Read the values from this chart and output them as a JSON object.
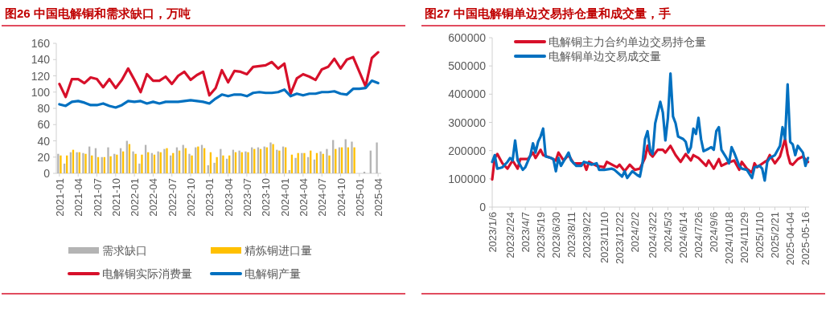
{
  "chart_data": [
    {
      "type": "bar",
      "title": "图26  中国电解铜和需求缺口，万吨",
      "categories": [
        "2021-01",
        null,
        null,
        "2021-04",
        null,
        null,
        "2021-07",
        null,
        null,
        "2021-10",
        null,
        null,
        "2022-01",
        null,
        null,
        "2022-04",
        null,
        null,
        "2022-07",
        null,
        null,
        "2022-10",
        null,
        null,
        "2023-01",
        null,
        null,
        "2023-04",
        null,
        null,
        "2023-07",
        null,
        null,
        "2023-10",
        null,
        null,
        "2024-01",
        null,
        null,
        "2024-04",
        null,
        null,
        "2024-07",
        null,
        null,
        "2024-10",
        null,
        null,
        "2025-01",
        null,
        null,
        "2025-04"
      ],
      "ylim": [
        0,
        160
      ],
      "yticks": [
        0,
        20,
        40,
        60,
        80,
        100,
        120,
        140,
        160
      ],
      "grid": false,
      "legend": "bottom",
      "series": [
        {
          "name": "需求缺口",
          "type": "bar",
          "color": "#b4b4b4",
          "values": [
            24,
            12,
            26,
            26,
            25,
            33,
            31,
            20,
            32,
            24,
            31,
            40,
            27,
            12,
            35,
            25,
            27,
            30,
            22,
            32,
            35,
            24,
            32,
            35,
            10,
            13,
            30,
            18,
            29,
            28,
            27,
            32,
            32,
            33,
            38,
            29,
            33,
            4,
            19,
            25,
            20,
            17,
            27,
            30,
            41,
            32,
            42,
            39,
            null,
            2,
            28,
            38
          ]
        },
        {
          "name": "精炼铜进口量",
          "type": "bar",
          "color": "#ffc000",
          "values": [
            22,
            22,
            29,
            26,
            24,
            22,
            20,
            20,
            21,
            23,
            27,
            36,
            24,
            23,
            26,
            23,
            26,
            31,
            25,
            28,
            31,
            22,
            33,
            31,
            26,
            20,
            22,
            22,
            26,
            26,
            26,
            30,
            30,
            32,
            36,
            28,
            32,
            23,
            25,
            25,
            28,
            25,
            24,
            22,
            30,
            32,
            32,
            32,
            null,
            null,
            null,
            null
          ]
        },
        {
          "name": "电解铜实际消费量",
          "type": "line",
          "color": "#d7102a",
          "values": [
            110,
            94,
            116,
            116,
            111,
            118,
            116,
            106,
            116,
            105,
            115,
            129,
            115,
            100,
            122,
            114,
            114,
            119,
            110,
            120,
            125,
            115,
            121,
            125,
            96,
            105,
            127,
            112,
            126,
            125,
            122,
            131,
            132,
            133,
            137,
            129,
            135,
            98,
            117,
            122,
            119,
            115,
            128,
            131,
            141,
            129,
            140,
            143,
            125,
            107,
            142,
            149
          ]
        },
        {
          "name": "电解铜产量",
          "type": "line",
          "color": "#0070c0",
          "values": [
            85,
            83,
            88,
            89,
            87,
            84,
            84,
            86,
            83,
            81,
            84,
            89,
            88,
            89,
            86,
            88,
            86,
            88,
            88,
            88,
            89,
            90,
            89,
            88,
            86,
            92,
            97,
            95,
            97,
            97,
            95,
            99,
            100,
            99,
            99,
            100,
            103,
            95,
            98,
            96,
            98,
            98,
            100,
            100,
            101,
            98,
            97,
            104,
            104,
            105,
            114,
            111
          ]
        }
      ]
    },
    {
      "type": "line",
      "title": "图27  中国电解铜单边交易持仓量和成交量，手",
      "ylim": [
        0,
        600000
      ],
      "yticks": [
        0,
        100000,
        200000,
        300000,
        400000,
        500000,
        600000
      ],
      "xlim": [
        "2023-01-06",
        "2025-05-26"
      ],
      "xticks": [
        {
          "value": "2023-01-06",
          "label": "2023/1/6"
        },
        {
          "value": "2023-02-24",
          "label": "2023/2/24"
        },
        {
          "value": "2023-04-07",
          "label": "2023/4/7"
        },
        {
          "value": "2023-05-19",
          "label": "2023/5/19"
        },
        {
          "value": "2023-06-30",
          "label": "2023/6/30"
        },
        {
          "value": "2023-08-11",
          "label": "2023/8/11"
        },
        {
          "value": "2023-09-22",
          "label": "2023/9/22"
        },
        {
          "value": "2023-11-10",
          "label": "2023/11/10"
        },
        {
          "value": "2023-12-22",
          "label": "2023/12/22"
        },
        {
          "value": "2024-02-02",
          "label": "2024/2/2"
        },
        {
          "value": "2024-03-22",
          "label": "2024/3/22"
        },
        {
          "value": "2024-05-03",
          "label": "2024/5/3"
        },
        {
          "value": "2024-06-14",
          "label": "2024/6/14"
        },
        {
          "value": "2024-07-26",
          "label": "2024/7/26"
        },
        {
          "value": "2024-09-06",
          "label": "2024/9/6"
        },
        {
          "value": "2024-10-18",
          "label": "2024/10/18"
        },
        {
          "value": "2024-11-29",
          "label": "2024/11/29"
        },
        {
          "value": "2025-01-10",
          "label": "2025/1/10"
        },
        {
          "value": "2025-02-21",
          "label": "2025/2/21"
        },
        {
          "value": "2025-04-04",
          "label": "2025-04-04"
        },
        {
          "value": "2025-05-16",
          "label": "2025-05-16"
        }
      ],
      "grid": false,
      "legend": "top left",
      "series": [
        {
          "name": "电解铜主力合约单边交易持仓量",
          "color": "#d7102a",
          "x": [
            "2023-01-06",
            "2023-01-13",
            "2023-01-20",
            "2023-02-03",
            "2023-02-17",
            "2023-03-03",
            "2023-03-17",
            "2023-03-24",
            "2023-04-14",
            "2023-04-28",
            "2023-05-05",
            "2023-05-19",
            "2023-05-26",
            "2023-06-16",
            "2023-06-30",
            "2023-07-07",
            "2023-07-21",
            "2023-08-04",
            "2023-08-18",
            "2023-09-01",
            "2023-09-15",
            "2023-09-22",
            "2023-09-29",
            "2023-10-20",
            "2023-11-10",
            "2023-11-17",
            "2023-12-15",
            "2023-12-22",
            "2024-01-05",
            "2024-01-19",
            "2024-02-02",
            "2024-02-16",
            "2024-02-23",
            "2024-03-01",
            "2024-03-08",
            "2024-03-15",
            "2024-03-22",
            "2024-04-05",
            "2024-04-19",
            "2024-04-26",
            "2024-05-10",
            "2024-05-24",
            "2024-06-07",
            "2024-06-21",
            "2024-07-05",
            "2024-07-12",
            "2024-07-26",
            "2024-08-16",
            "2024-08-23",
            "2024-09-06",
            "2024-09-20",
            "2024-09-27",
            "2024-10-11",
            "2024-11-01",
            "2024-11-15",
            "2024-11-22",
            "2024-12-06",
            "2024-12-20",
            "2024-12-27",
            "2025-01-03",
            "2025-01-24",
            "2025-01-31",
            "2025-02-07",
            "2025-02-21",
            "2025-03-07",
            "2025-03-21",
            "2025-03-28",
            "2025-04-04",
            "2025-04-11",
            "2025-04-25",
            "2025-05-09",
            "2025-05-23"
          ],
          "values": [
            98000,
            174000,
            188000,
            155000,
            136000,
            165000,
            136000,
            170000,
            170000,
            193000,
            174000,
            203000,
            184000,
            174000,
            165000,
            193000,
            165000,
            184000,
            155000,
            155000,
            155000,
            132000,
            160000,
            146000,
            141000,
            160000,
            141000,
            150000,
            127000,
            150000,
            132000,
            136000,
            155000,
            174000,
            217000,
            188000,
            179000,
            203000,
            203000,
            193000,
            217000,
            184000,
            160000,
            188000,
            165000,
            184000,
            174000,
            146000,
            165000,
            136000,
            170000,
            146000,
            155000,
            165000,
            132000,
            160000,
            136000,
            122000,
            155000,
            141000,
            160000,
            165000,
            184000,
            155000,
            179000,
            241000,
            188000,
            155000,
            150000,
            170000,
            179000,
            160000
          ]
        },
        {
          "name": "电解铜单边交易成交量",
          "color": "#0070c0",
          "x": [
            "2023-01-06",
            "2023-01-13",
            "2023-01-20",
            "2023-02-03",
            "2023-02-17",
            "2023-02-24",
            "2023-03-03",
            "2023-03-10",
            "2023-03-17",
            "2023-03-31",
            "2023-04-07",
            "2023-04-21",
            "2023-04-28",
            "2023-05-05",
            "2023-05-12",
            "2023-05-19",
            "2023-05-26",
            "2023-06-02",
            "2023-06-16",
            "2023-06-23",
            "2023-06-30",
            "2023-07-07",
            "2023-07-14",
            "2023-08-04",
            "2023-08-11",
            "2023-08-25",
            "2023-09-08",
            "2023-09-15",
            "2023-09-29",
            "2023-10-06",
            "2023-10-20",
            "2023-10-27",
            "2023-11-10",
            "2023-12-01",
            "2023-12-08",
            "2023-12-29",
            "2024-01-05",
            "2024-01-12",
            "2024-01-26",
            "2024-02-09",
            "2024-02-16",
            "2024-02-23",
            "2024-03-01",
            "2024-03-08",
            "2024-03-15",
            "2024-03-22",
            "2024-03-29",
            "2024-04-05",
            "2024-04-12",
            "2024-04-19",
            "2024-04-26",
            "2024-05-03",
            "2024-05-10",
            "2024-05-17",
            "2024-05-24",
            "2024-05-31",
            "2024-06-14",
            "2024-06-21",
            "2024-06-28",
            "2024-07-05",
            "2024-07-12",
            "2024-07-19",
            "2024-07-26",
            "2024-08-02",
            "2024-08-09",
            "2024-08-23",
            "2024-08-30",
            "2024-09-06",
            "2024-09-13",
            "2024-09-20",
            "2024-09-27",
            "2024-10-11",
            "2024-10-18",
            "2024-10-25",
            "2024-11-01",
            "2024-11-15",
            "2024-11-22",
            "2024-12-06",
            "2024-12-20",
            "2024-12-27",
            "2025-01-10",
            "2025-01-17",
            "2025-01-24",
            "2025-01-31",
            "2025-02-07",
            "2025-02-21",
            "2025-03-07",
            "2025-03-14",
            "2025-03-21",
            "2025-03-28",
            "2025-04-04",
            "2025-04-11",
            "2025-04-18",
            "2025-04-25",
            "2025-05-09",
            "2025-05-16",
            "2025-05-23"
          ],
          "values": [
            160000,
            184000,
            136000,
            141000,
            160000,
            174000,
            165000,
            236000,
            165000,
            132000,
            141000,
            184000,
            226000,
            193000,
            231000,
            250000,
            278000,
            179000,
            174000,
            170000,
            127000,
            174000,
            146000,
            193000,
            165000,
            146000,
            146000,
            160000,
            155000,
            150000,
            155000,
            132000,
            132000,
            136000,
            132000,
            108000,
            127000,
            103000,
            127000,
            113000,
            108000,
            155000,
            241000,
            269000,
            203000,
            188000,
            297000,
            335000,
            373000,
            335000,
            236000,
            316000,
            473000,
            321000,
            297000,
            250000,
            241000,
            231000,
            193000,
            212000,
            278000,
            259000,
            316000,
            241000,
            198000,
            207000,
            212000,
            203000,
            269000,
            283000,
            203000,
            174000,
            155000,
            212000,
            193000,
            146000,
            136000,
            132000,
            103000,
            141000,
            146000,
            136000,
            94000,
            160000,
            174000,
            184000,
            217000,
            283000,
            241000,
            435000,
            231000,
            222000,
            184000,
            217000,
            193000,
            146000,
            174000
          ]
        }
      ]
    }
  ]
}
